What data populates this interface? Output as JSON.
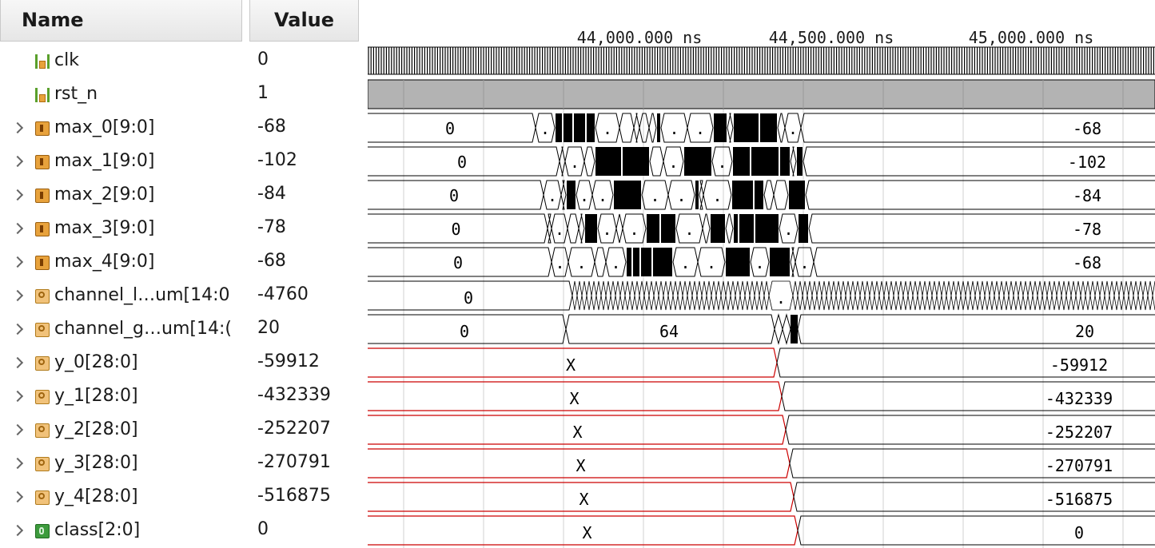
{
  "columns": {
    "name": "Name",
    "value": "Value"
  },
  "timeline": {
    "labels": [
      "44,000.000 ns",
      "44,500.000 ns",
      "45,000.000 ns"
    ]
  },
  "signals": [
    {
      "name": "clk",
      "value": "0",
      "kind": "bit",
      "expandable": false,
      "icon": "bit-signal-icon"
    },
    {
      "name": "rst_n",
      "value": "1",
      "kind": "bit",
      "expandable": false,
      "icon": "bit-signal-icon"
    },
    {
      "name": "max_0[9:0]",
      "value": "-68",
      "kind": "bus",
      "expandable": true,
      "icon": "bus-signal-icon",
      "start": "0",
      "end": "-68",
      "trans": ".",
      "busy_from": 210,
      "busy_to": 542
    },
    {
      "name": "max_1[9:0]",
      "value": "-102",
      "kind": "bus",
      "expandable": true,
      "icon": "bus-signal-icon",
      "start": "0",
      "end": "-102",
      "trans": ".",
      "busy_from": 240,
      "busy_to": 545
    },
    {
      "name": "max_2[9:0]",
      "value": "-84",
      "kind": "bus",
      "expandable": true,
      "icon": "bus-signal-icon",
      "start": "0",
      "end": "-84",
      "trans": ".",
      "busy_from": 220,
      "busy_to": 548
    },
    {
      "name": "max_3[9:0]",
      "value": "-78",
      "kind": "bus",
      "expandable": true,
      "icon": "bus-signal-icon",
      "start": "0",
      "end": "-78",
      "trans": ".",
      "busy_from": 225,
      "busy_to": 552
    },
    {
      "name": "max_4[9:0]",
      "value": "-68",
      "kind": "bus",
      "expandable": true,
      "icon": "bus-signal-icon",
      "start": "0",
      "end": "-68",
      "trans": ".",
      "busy_from": 230,
      "busy_to": 558
    },
    {
      "name": "channel_l…um[14:0",
      "value": "-4760",
      "kind": "ana",
      "expandable": true,
      "icon": "analog-signal-icon",
      "start": "0",
      "mid_label": "."
    },
    {
      "name": "channel_g…um[14:(",
      "value": "20",
      "kind": "ana",
      "expandable": true,
      "icon": "analog-signal-icon",
      "start": "0",
      "mid": "64",
      "end": "20"
    },
    {
      "name": "y_0[28:0]",
      "value": "-59912",
      "kind": "ana",
      "expandable": true,
      "icon": "analog-signal-icon",
      "start": "X",
      "end": "-59912",
      "switch": 512
    },
    {
      "name": "y_1[28:0]",
      "value": "-432339",
      "kind": "ana",
      "expandable": true,
      "icon": "analog-signal-icon",
      "start": "X",
      "end": "-432339",
      "switch": 518
    },
    {
      "name": "y_2[28:0]",
      "value": "-252207",
      "kind": "ana",
      "expandable": true,
      "icon": "analog-signal-icon",
      "start": "X",
      "end": "-252207",
      "switch": 523
    },
    {
      "name": "y_3[28:0]",
      "value": "-270791",
      "kind": "ana",
      "expandable": true,
      "icon": "analog-signal-icon",
      "start": "X",
      "end": "-270791",
      "switch": 528
    },
    {
      "name": "y_4[28:0]",
      "value": "-516875",
      "kind": "ana",
      "expandable": true,
      "icon": "analog-signal-icon",
      "start": "X",
      "end": "-516875",
      "switch": 533
    },
    {
      "name": "class[2:0]",
      "value": "0",
      "kind": "cls",
      "expandable": true,
      "icon": "class-signal-icon",
      "start": "X",
      "end": "0",
      "switch": 538
    }
  ],
  "colors": {
    "undefined": "#cc0000",
    "bus": "#000000",
    "reset_fill": "#b3b3b3",
    "grid": "#d0d0d0"
  }
}
